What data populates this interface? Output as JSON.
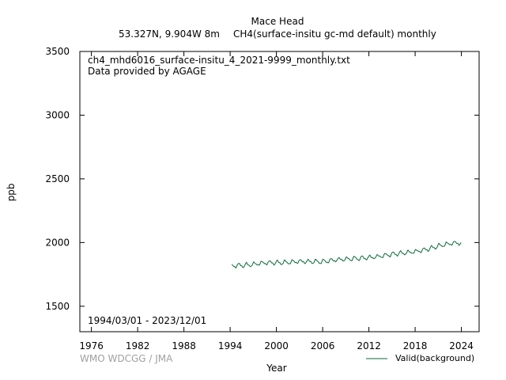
{
  "header": {
    "station": "Mace Head",
    "location": "53.327N, 9.904W 8m",
    "species": "CH4(surface-insitu gc-md default) monthly"
  },
  "annotations": {
    "filename": "ch4_mhd6016_surface-insitu_4_2021-9999_monthly.txt",
    "provider": "Data provided by AGAGE",
    "date_range": "1994/03/01 - 2023/12/01",
    "watermark": "WMO WDCGG / JMA"
  },
  "colors": {
    "series": "#0b6b3a",
    "watermark": "#a0a0a0"
  },
  "chart_data": {
    "type": "line",
    "title": "Mace Head",
    "xlabel": "Year",
    "ylabel": "ppb",
    "xlim": [
      1974.5,
      2026.3
    ],
    "ylim": [
      1300,
      3500
    ],
    "xticks": [
      1976,
      1982,
      1988,
      1994,
      2000,
      2006,
      2012,
      2018,
      2024
    ],
    "yticks": [
      1500,
      2000,
      2500,
      3000,
      3500
    ],
    "grid": false,
    "legend": "bottom-right",
    "series": [
      {
        "name": "Valid(background)",
        "color": "#0b6b3a",
        "start": "1994/03/01",
        "end": "2023/12/01",
        "annual_mean": [
          [
            1994,
            1815
          ],
          [
            1995,
            1820
          ],
          [
            1996,
            1822
          ],
          [
            1997,
            1828
          ],
          [
            1998,
            1838
          ],
          [
            1999,
            1842
          ],
          [
            2000,
            1842
          ],
          [
            2001,
            1843
          ],
          [
            2002,
            1847
          ],
          [
            2003,
            1852
          ],
          [
            2004,
            1851
          ],
          [
            2005,
            1850
          ],
          [
            2006,
            1850
          ],
          [
            2007,
            1858
          ],
          [
            2008,
            1866
          ],
          [
            2009,
            1869
          ],
          [
            2010,
            1874
          ],
          [
            2011,
            1877
          ],
          [
            2012,
            1882
          ],
          [
            2013,
            1888
          ],
          [
            2014,
            1898
          ],
          [
            2015,
            1908
          ],
          [
            2016,
            1915
          ],
          [
            2017,
            1921
          ],
          [
            2018,
            1929
          ],
          [
            2019,
            1940
          ],
          [
            2020,
            1954
          ],
          [
            2021,
            1972
          ],
          [
            2022,
            1986
          ],
          [
            2023,
            1996
          ]
        ],
        "seasonal_amplitude": 14
      }
    ]
  }
}
